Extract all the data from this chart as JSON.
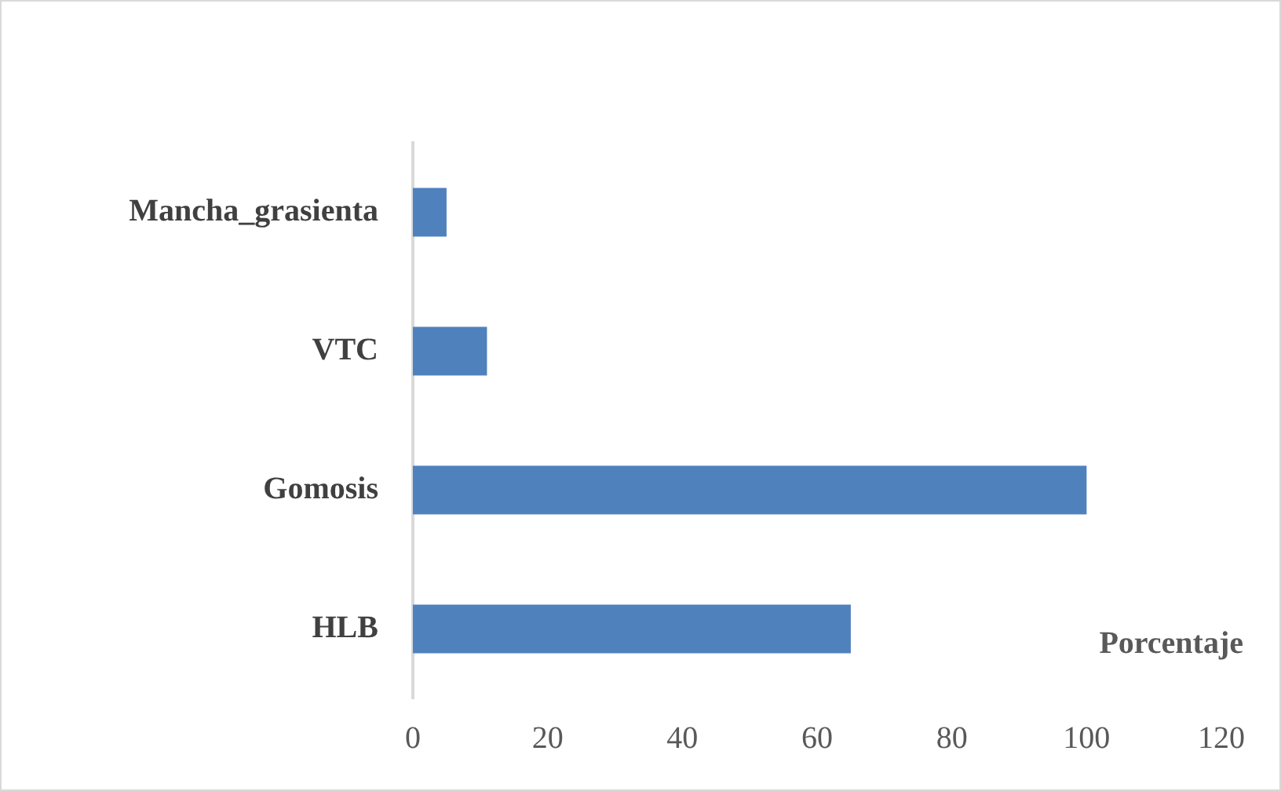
{
  "chart_data": {
    "type": "bar",
    "orientation": "horizontal",
    "categories": [
      "Mancha_grasienta",
      "VTC",
      "Gomosis",
      "HLB"
    ],
    "values": [
      5,
      11,
      100,
      65
    ],
    "color": "#4f81bd",
    "xlabel": "Porcentaje",
    "xlim": [
      0,
      120
    ],
    "xticks": [
      0,
      20,
      40,
      60,
      80,
      100,
      120
    ],
    "grid": false,
    "legend": false
  }
}
